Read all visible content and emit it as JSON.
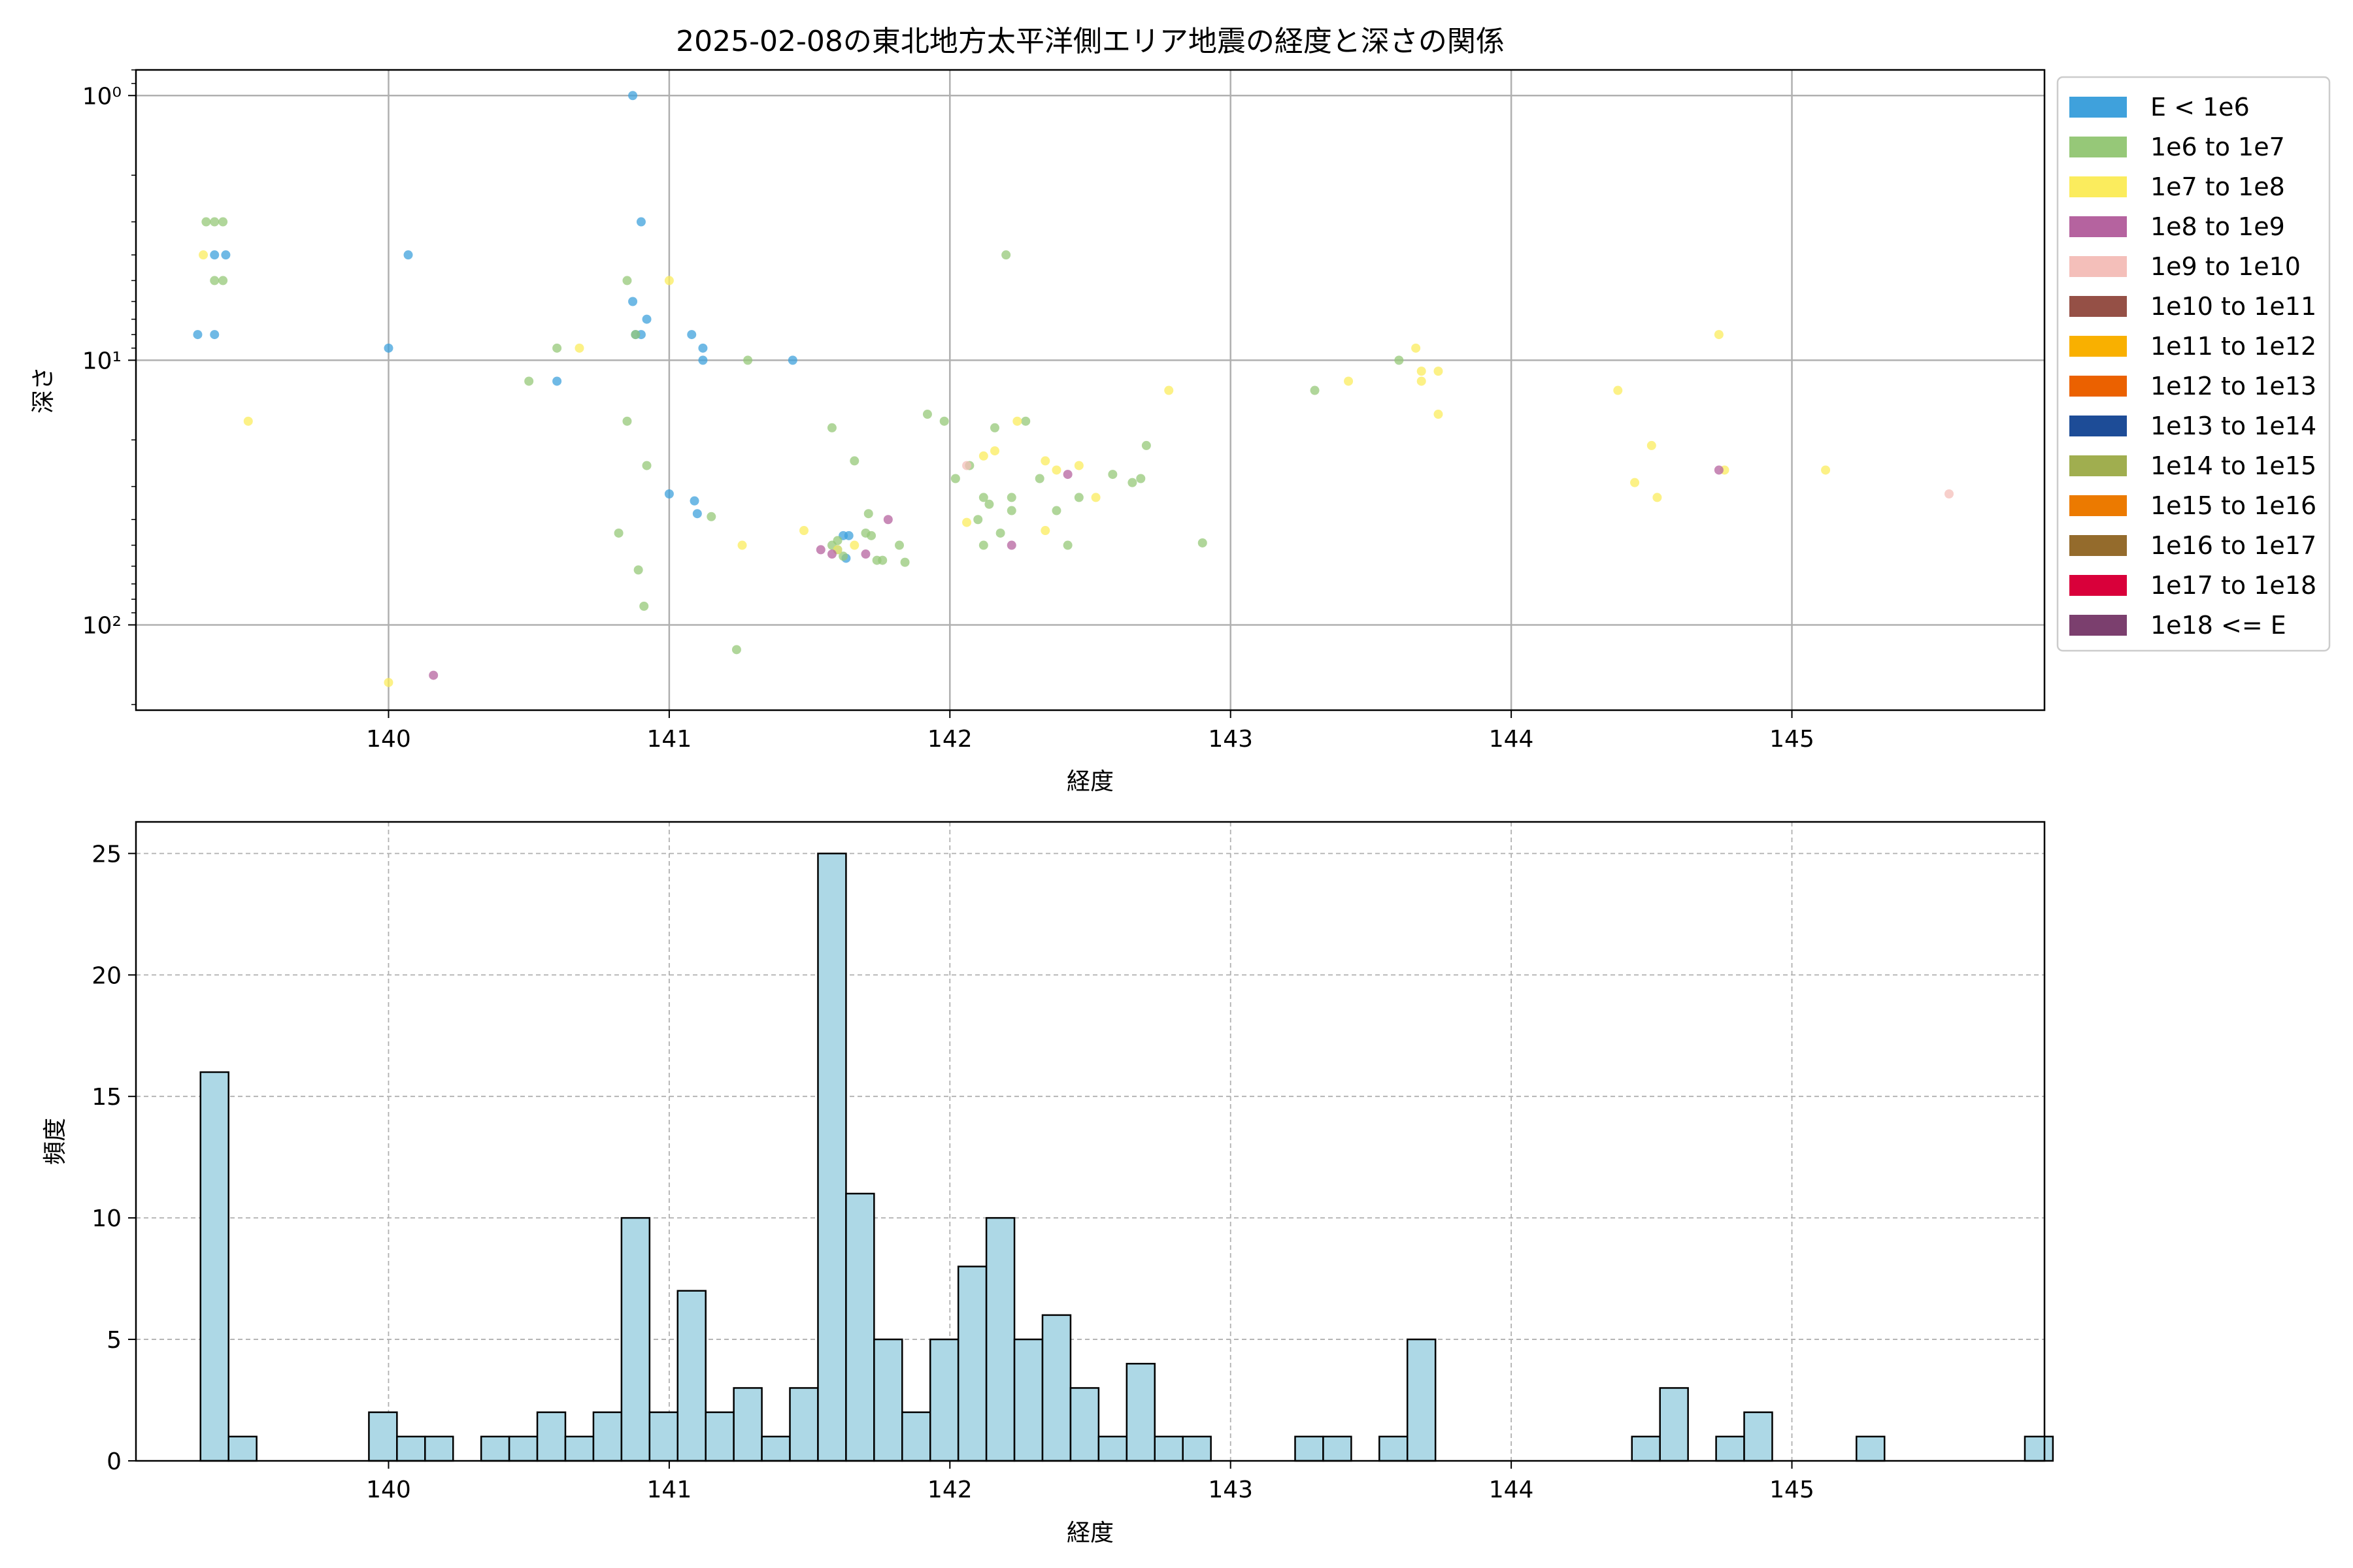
{
  "chart_data": [
    {
      "type": "scatter",
      "title": "2025-02-08の東北地方太平洋側エリア地震の経度と深さの関係",
      "xlabel": "経度",
      "ylabel": "深さ",
      "xlim": [
        139.1,
        145.9
      ],
      "yscale": "log",
      "y_inverted": true,
      "ylim": [
        0.8,
        210
      ],
      "xticks": [
        140,
        141,
        142,
        143,
        144,
        145
      ],
      "yticks": [
        {
          "value": 1,
          "label": "10⁰"
        },
        {
          "value": 10,
          "label": "10¹"
        },
        {
          "value": 100,
          "label": "10²"
        }
      ],
      "grid": true,
      "legend_position": "outside-right",
      "legend": [
        {
          "label": "E < 1e6",
          "color": "#3fa1dc"
        },
        {
          "label": "1e6 to 1e7",
          "color": "#96c878"
        },
        {
          "label": "1e7 to 1e8",
          "color": "#fbec5d"
        },
        {
          "label": "1e8 to 1e9",
          "color": "#b5639f"
        },
        {
          "label": "1e9 to 1e10",
          "color": "#f4bfba"
        },
        {
          "label": "1e10 to 1e11",
          "color": "#955046"
        },
        {
          "label": "1e11 to 1e12",
          "color": "#f9b000"
        },
        {
          "label": "1e12 to 1e13",
          "color": "#eb6100"
        },
        {
          "label": "1e13 to 1e14",
          "color": "#1d4c97"
        },
        {
          "label": "1e14 to 1e15",
          "color": "#a0ae4f"
        },
        {
          "label": "1e15 to 1e16",
          "color": "#ec7a00"
        },
        {
          "label": "1e16 to 1e17",
          "color": "#946b2c"
        },
        {
          "label": "1e17 to 1e18",
          "color": "#d9003a"
        },
        {
          "label": "1e18 <= E",
          "color": "#7b3f6e"
        }
      ],
      "series": [
        {
          "name": "E < 1e6",
          "color": "#3fa1dc",
          "points": [
            [
              139.32,
              8
            ],
            [
              139.38,
              8
            ],
            [
              139.38,
              4
            ],
            [
              139.42,
              4
            ],
            [
              140.0,
              9
            ],
            [
              140.07,
              4
            ],
            [
              140.6,
              12
            ],
            [
              140.87,
              1.0
            ],
            [
              140.9,
              3
            ],
            [
              140.87,
              6
            ],
            [
              140.9,
              8
            ],
            [
              140.92,
              7
            ],
            [
              140.88,
              8
            ],
            [
              141.08,
              8
            ],
            [
              141.12,
              9
            ],
            [
              141.12,
              10
            ],
            [
              141.44,
              10
            ],
            [
              141.0,
              32
            ],
            [
              141.09,
              34
            ],
            [
              141.1,
              38
            ],
            [
              141.62,
              46
            ],
            [
              141.64,
              46
            ],
            [
              141.63,
              56
            ],
            [
              141.6,
              52
            ]
          ]
        },
        {
          "name": "1e6 to 1e7",
          "color": "#96c878",
          "points": [
            [
              139.35,
              3
            ],
            [
              139.38,
              3
            ],
            [
              139.41,
              3
            ],
            [
              139.38,
              5
            ],
            [
              139.41,
              5
            ],
            [
              140.5,
              12
            ],
            [
              140.6,
              9
            ],
            [
              140.85,
              5
            ],
            [
              140.88,
              8
            ],
            [
              140.85,
              17
            ],
            [
              140.82,
              45
            ],
            [
              140.92,
              25
            ],
            [
              140.89,
              62
            ],
            [
              140.91,
              85
            ],
            [
              141.15,
              39
            ],
            [
              141.24,
              124
            ],
            [
              141.28,
              10
            ],
            [
              141.58,
              18
            ],
            [
              141.66,
              24
            ],
            [
              141.71,
              38
            ],
            [
              141.72,
              46
            ],
            [
              141.7,
              45
            ],
            [
              141.74,
              57
            ],
            [
              141.76,
              57
            ],
            [
              141.82,
              50
            ],
            [
              141.84,
              58
            ],
            [
              141.6,
              48
            ],
            [
              141.58,
              50
            ],
            [
              141.62,
              55
            ],
            [
              141.92,
              16
            ],
            [
              141.98,
              17
            ],
            [
              142.02,
              28
            ],
            [
              142.07,
              25
            ],
            [
              142.1,
              40
            ],
            [
              142.12,
              33
            ],
            [
              142.14,
              35
            ],
            [
              142.16,
              18
            ],
            [
              142.18,
              45
            ],
            [
              142.22,
              33
            ],
            [
              142.22,
              37
            ],
            [
              142.27,
              17
            ],
            [
              142.32,
              28
            ],
            [
              142.38,
              37
            ],
            [
              142.46,
              33
            ],
            [
              142.58,
              27
            ],
            [
              142.65,
              29
            ],
            [
              142.7,
              21
            ],
            [
              142.9,
              49
            ],
            [
              142.12,
              50
            ],
            [
              142.42,
              50
            ],
            [
              142.2,
              4
            ],
            [
              143.3,
              13
            ],
            [
              143.6,
              10
            ],
            [
              142.68,
              28
            ]
          ]
        },
        {
          "name": "1e7 to 1e8",
          "color": "#fbec5d",
          "points": [
            [
              139.34,
              4
            ],
            [
              139.5,
              17
            ],
            [
              140.68,
              9
            ],
            [
              141.0,
              5
            ],
            [
              140.0,
              165
            ],
            [
              141.26,
              50
            ],
            [
              141.48,
              44
            ],
            [
              141.6,
              52
            ],
            [
              141.66,
              50
            ],
            [
              142.06,
              41
            ],
            [
              142.12,
              23
            ],
            [
              142.16,
              22
            ],
            [
              142.24,
              17
            ],
            [
              142.34,
              24
            ],
            [
              142.38,
              26
            ],
            [
              142.46,
              25
            ],
            [
              142.52,
              33
            ],
            [
              142.34,
              44
            ],
            [
              142.78,
              13
            ],
            [
              143.42,
              12
            ],
            [
              143.66,
              9
            ],
            [
              143.68,
              11
            ],
            [
              143.68,
              12
            ],
            [
              143.74,
              11
            ],
            [
              143.74,
              16
            ],
            [
              144.38,
              13
            ],
            [
              144.44,
              29
            ],
            [
              144.5,
              21
            ],
            [
              144.52,
              33
            ],
            [
              144.76,
              26
            ],
            [
              144.74,
              8
            ],
            [
              145.12,
              26
            ]
          ]
        },
        {
          "name": "1e8 to 1e9",
          "color": "#b5639f",
          "points": [
            [
              140.16,
              155
            ],
            [
              141.54,
              52
            ],
            [
              141.58,
              54
            ],
            [
              141.7,
              54
            ],
            [
              141.78,
              40
            ],
            [
              142.22,
              50
            ],
            [
              142.42,
              27
            ],
            [
              144.74,
              26
            ]
          ]
        },
        {
          "name": "1e9 to 1e10",
          "color": "#f4bfba",
          "points": [
            [
              142.06,
              25
            ],
            [
              145.56,
              32
            ]
          ]
        }
      ]
    },
    {
      "type": "histogram",
      "xlabel": "経度",
      "ylabel": "頻度",
      "xlim": [
        139.1,
        145.9
      ],
      "ylim": [
        0,
        26.3
      ],
      "bin_start": 139.33,
      "bin_width": 0.1,
      "xticks": [
        140,
        141,
        142,
        143,
        144,
        145
      ],
      "yticks": [
        0,
        5,
        10,
        15,
        20,
        25
      ],
      "grid": true,
      "bar_color": "#add8e6",
      "edge_color": "#000000",
      "counts": [
        16,
        1,
        0,
        0,
        0,
        0,
        2,
        1,
        1,
        0,
        1,
        1,
        2,
        1,
        2,
        10,
        2,
        7,
        2,
        3,
        1,
        3,
        25,
        11,
        5,
        2,
        5,
        8,
        10,
        5,
        6,
        3,
        1,
        4,
        1,
        1,
        0,
        0,
        0,
        1,
        1,
        0,
        1,
        5,
        0,
        0,
        0,
        0,
        0,
        0,
        0,
        1,
        3,
        0,
        1,
        2,
        0,
        0,
        0,
        1,
        0,
        0,
        0,
        0,
        0,
        1
      ]
    }
  ]
}
